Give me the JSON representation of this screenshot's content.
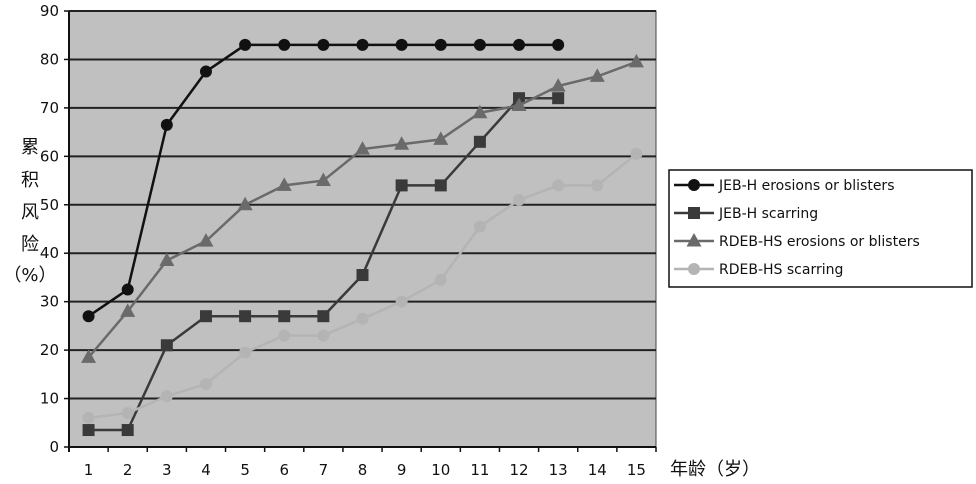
{
  "chart_data": {
    "type": "line",
    "title": "",
    "xlabel": "年龄（岁）",
    "ylabel_chars": [
      "累",
      "积",
      "风",
      "险",
      "（%）"
    ],
    "x": [
      1,
      2,
      3,
      4,
      5,
      6,
      7,
      8,
      9,
      10,
      11,
      12,
      13,
      14,
      15
    ],
    "ylim": [
      0,
      90
    ],
    "yticks": [
      0,
      10,
      20,
      30,
      40,
      50,
      60,
      70,
      80,
      90
    ],
    "grid": "horizontal",
    "legend_position": "right",
    "series": [
      {
        "name": "JEB-H erosions or blisters",
        "marker": "circle",
        "color": "#111111",
        "values": [
          27,
          32.5,
          66.5,
          77.5,
          83,
          83,
          83,
          83,
          83,
          83,
          83,
          83,
          83,
          null,
          null
        ]
      },
      {
        "name": "JEB-H scarring",
        "marker": "square",
        "color": "#3a3a3a",
        "values": [
          3.5,
          3.5,
          21,
          27,
          27,
          27,
          27,
          35.5,
          54,
          54,
          63,
          72,
          72,
          null,
          null
        ]
      },
      {
        "name": "RDEB-HS erosions or blisters",
        "marker": "triangle",
        "color": "#6a6a6a",
        "values": [
          18.5,
          28,
          38.5,
          42.5,
          50,
          54,
          55,
          61.5,
          62.5,
          63.5,
          69,
          70.5,
          74.5,
          76.5,
          79.5
        ]
      },
      {
        "name": "RDEB-HS scarring",
        "marker": "circle",
        "color": "#b4b4b4",
        "values": [
          6,
          7,
          10.5,
          13,
          19.5,
          23,
          23,
          26.5,
          30,
          34.5,
          45.5,
          51,
          54,
          54,
          60.5
        ]
      }
    ]
  },
  "colors": {
    "plot_bg": "#c0c0c0",
    "grid": "#222222"
  }
}
